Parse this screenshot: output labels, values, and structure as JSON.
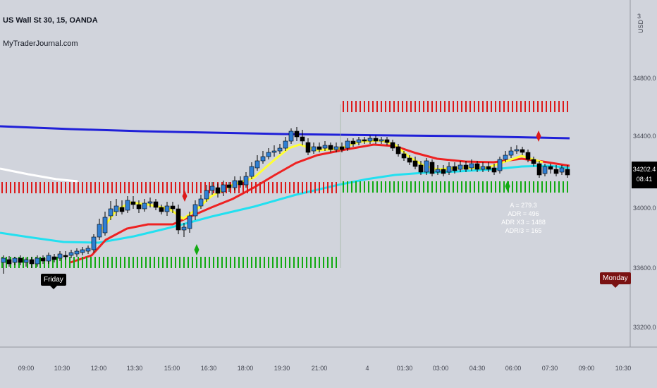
{
  "header": {
    "title": "US Wall St 30, 15, OANDA",
    "watermark": "MyTraderJournal.com"
  },
  "price_axis": {
    "currency_top": "3",
    "currency": "USD",
    "labels": [
      "34800.0",
      "34400.0",
      "34000.0",
      "33600.0",
      "33200.0"
    ],
    "current_price": "34202.4",
    "countdown": "08:41"
  },
  "time_axis": {
    "labels": [
      "09:00",
      "10:30",
      "12:00",
      "13:30",
      "15:00",
      "16:30",
      "18:00",
      "19:30",
      "21:00",
      "4",
      "01:30",
      "03:00",
      "04:30",
      "06:00",
      "07:30",
      "09:00",
      "10:30"
    ]
  },
  "session_tags": {
    "friday": "Friday",
    "monday": "Monday"
  },
  "stats": {
    "a": "A = 279.3",
    "adr": "ADR = 496",
    "adr_x3": "ADR X3 = 1488",
    "adr_div3": "ADR/3 = 165"
  },
  "colors": {
    "background": "#d1d4dc",
    "candle_up": "#2f7fd4",
    "candle_down": "#000000",
    "ema_yellow": "#ffff33",
    "ema_red": "#ee2222",
    "ema_cyan": "#22e0f0",
    "ma_blue": "#2020d8",
    "ma_white": "#ffffff",
    "level_red": "#dd1a1a",
    "level_green": "#11aa11"
  }
}
